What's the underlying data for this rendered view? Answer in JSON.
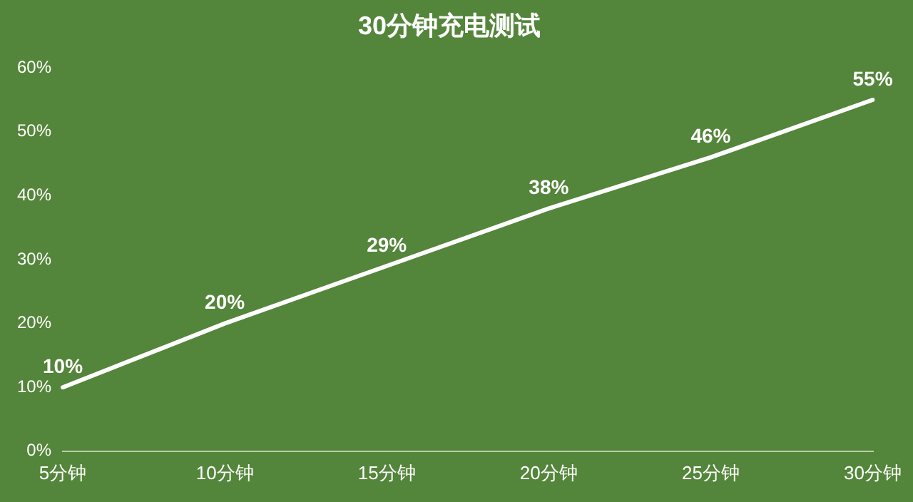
{
  "chart_data": {
    "type": "line",
    "title": "30分钟充电测试",
    "categories": [
      "5分钟",
      "10分钟",
      "15分钟",
      "20分钟",
      "25分钟",
      "30分钟"
    ],
    "series": [
      {
        "color": "#ffffff",
        "values": [
          10,
          20,
          29,
          38,
          46,
          55
        ]
      }
    ],
    "value_labels": [
      "10%",
      "20%",
      "29%",
      "38%",
      "46%",
      "55%"
    ],
    "ylim": [
      0,
      60
    ],
    "yticks": [
      {
        "value": 0,
        "label": "0%"
      },
      {
        "value": 10,
        "label": "10%"
      },
      {
        "value": 20,
        "label": "20%"
      },
      {
        "value": 30,
        "label": "30%"
      },
      {
        "value": 40,
        "label": "40%"
      },
      {
        "value": 50,
        "label": "50%"
      },
      {
        "value": 60,
        "label": "60%"
      }
    ],
    "grid": false,
    "legend": false,
    "marker": "none",
    "line_style": "solid"
  }
}
